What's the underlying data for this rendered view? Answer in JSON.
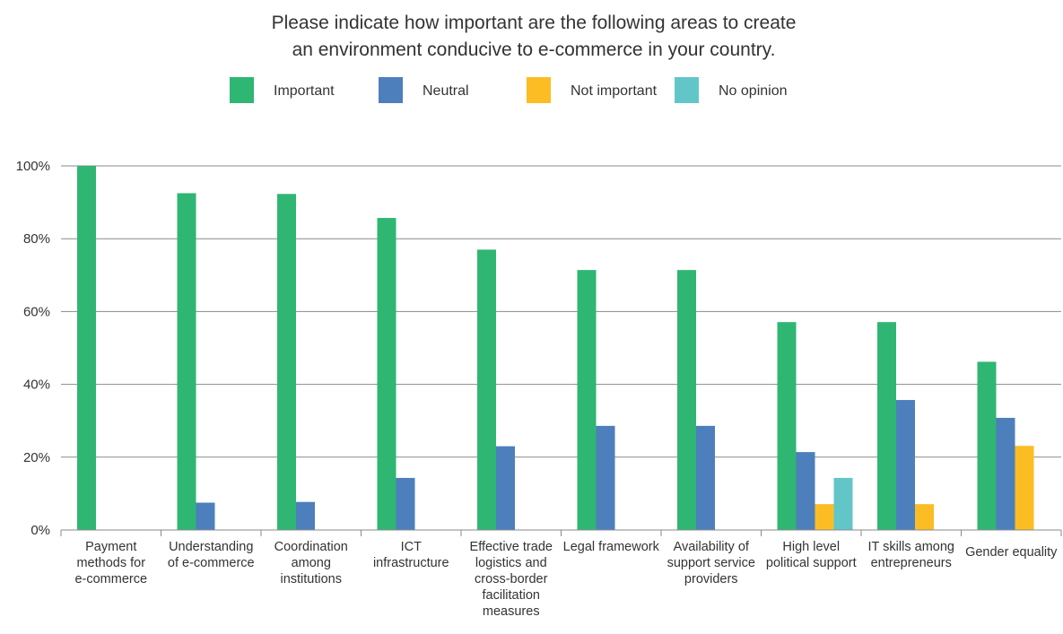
{
  "chart_data": {
    "type": "bar",
    "title": [
      "Please indicate how important are the following areas to create",
      "an environment conducive to e-commerce in your country."
    ],
    "categories": [
      [
        "Payment",
        "methods for",
        "e-commerce"
      ],
      [
        "Understanding",
        "of e-commerce"
      ],
      [
        "Coordination",
        "among",
        "institutions"
      ],
      [
        "ICT",
        "infrastructure"
      ],
      [
        "Effective trade",
        "logistics and",
        "cross-border",
        "facilitation",
        "measures"
      ],
      [
        "Legal framework"
      ],
      [
        "Availability of",
        "support service",
        "providers"
      ],
      [
        "High level",
        "political support"
      ],
      [
        "IT skills among",
        "entrepreneurs"
      ],
      [
        "Gender equality"
      ]
    ],
    "series": [
      {
        "name": "Important",
        "color": "#2fb673",
        "values": [
          100,
          92.5,
          92.3,
          85.7,
          77,
          71.4,
          71.4,
          57.1,
          57.1,
          46.2
        ]
      },
      {
        "name": "Neutral",
        "color": "#4d7fbd",
        "values": [
          0,
          7.5,
          7.7,
          14.3,
          23,
          28.6,
          28.6,
          21.4,
          35.7,
          30.8
        ]
      },
      {
        "name": "Not important",
        "color": "#fbbd23",
        "values": [
          0,
          0,
          0,
          0,
          0,
          0,
          0,
          7.1,
          7.1,
          23.1
        ]
      },
      {
        "name": "No opinion",
        "color": "#62c6c9",
        "values": [
          0,
          0,
          0,
          0,
          0,
          0,
          0,
          14.3,
          0,
          0
        ]
      }
    ],
    "yticks": [
      "0%",
      "20%",
      "40%",
      "60%",
      "80%",
      "100%"
    ],
    "ylim": [
      0,
      100
    ],
    "grid": true,
    "legend_position": "top-center"
  }
}
